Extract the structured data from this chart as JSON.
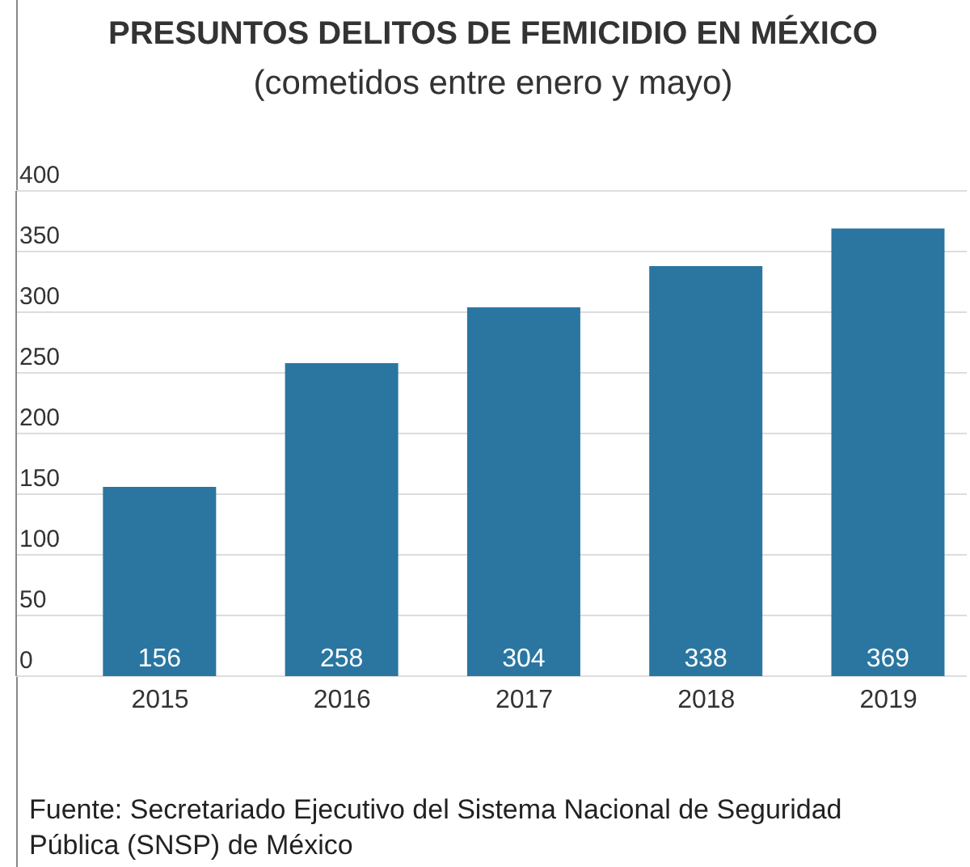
{
  "chart_data": {
    "type": "bar",
    "title": "PRESUNTOS DELITOS DE FEMICIDIO EN MÉXICO",
    "subtitle": "(cometidos entre enero y mayo)",
    "categories": [
      "2015",
      "2016",
      "2017",
      "2018",
      "2019"
    ],
    "values": [
      156,
      258,
      304,
      338,
      369
    ],
    "color": "#2a76a1",
    "ylim": [
      0,
      400
    ],
    "yticks": [
      0,
      50,
      100,
      150,
      200,
      250,
      300,
      350,
      400
    ],
    "grid": "y",
    "data_labels": true,
    "legend": false,
    "annotations": [
      "Fuente: Secretariado Ejecutivo del Sistema Nacional de Seguridad Pública (SNSP) de México"
    ]
  }
}
